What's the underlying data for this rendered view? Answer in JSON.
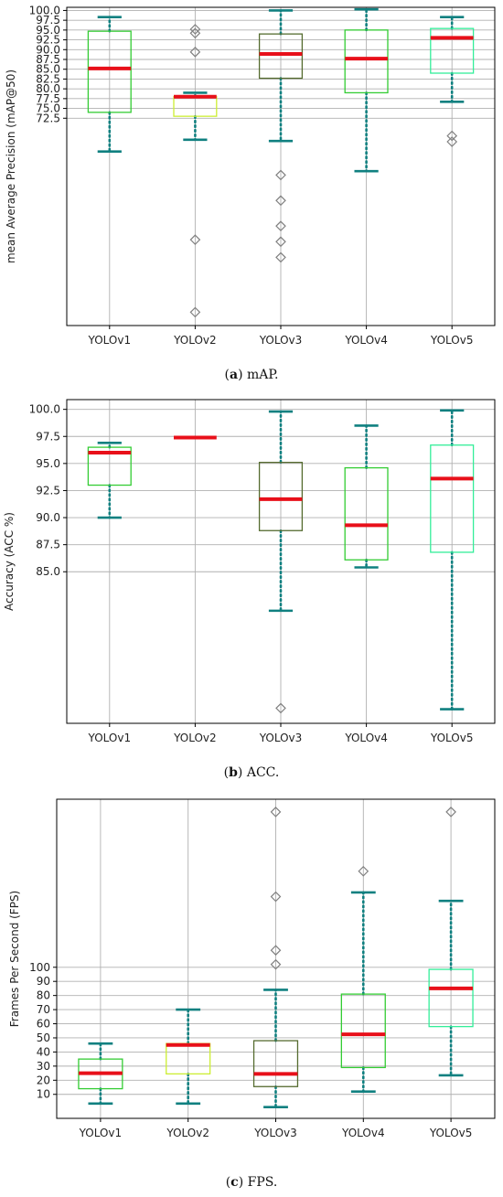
{
  "chart_data": [
    {
      "type": "boxplot",
      "caption_letter": "a",
      "caption_text": " mAP.",
      "ylabel": "mean Average Precision (mAP@50)",
      "yticks": [
        100.0,
        97.5,
        95.0,
        92.5,
        90.0,
        87.5,
        85.0,
        82.5,
        80.0,
        77.5,
        75.0,
        72.5
      ],
      "ylim": [
        19.6,
        100.8
      ],
      "grid": true,
      "categories": [
        "YOLOv1",
        "YOLOv2",
        "YOLOv3",
        "YOLOv4",
        "YOLOv5"
      ],
      "boxes": [
        {
          "name": "YOLOv1",
          "whislo": 64.0,
          "q1": 74.0,
          "med": 85.2,
          "q3": 94.7,
          "whishi": 98.3,
          "fliers": [],
          "color": "#33cc33"
        },
        {
          "name": "YOLOv2",
          "whislo": 67.0,
          "q1": 73.0,
          "med": 78.0,
          "q3": 78.0,
          "whishi": 79.0,
          "fliers": [
            95.2,
            94.2,
            89.4,
            41.5,
            23.0
          ],
          "color": "#ccee33"
        },
        {
          "name": "YOLOv3",
          "whislo": 66.7,
          "q1": 82.7,
          "med": 88.9,
          "q3": 94.0,
          "whishi": 100.0,
          "fliers": [
            58.0,
            51.5,
            45.0,
            41.0,
            37.0
          ],
          "color": "#556b2f"
        },
        {
          "name": "YOLOv4",
          "whislo": 59.0,
          "q1": 79.0,
          "med": 87.7,
          "q3": 95.0,
          "whishi": 100.3,
          "fliers": [],
          "color": "#33cc33"
        },
        {
          "name": "YOLOv5",
          "whislo": 76.7,
          "q1": 84.0,
          "med": 93.0,
          "q3": 95.4,
          "whishi": 98.3,
          "fliers": [
            68.0,
            66.5
          ],
          "color": "#33ee99"
        }
      ]
    },
    {
      "type": "boxplot",
      "caption_letter": "b",
      "caption_text": " ACC.",
      "ylabel": "Accuracy (ACC %)",
      "yticks": [
        100.0,
        97.5,
        95.0,
        92.5,
        90.0,
        87.5,
        85.0
      ],
      "ylim": [
        71.0,
        100.9
      ],
      "grid": true,
      "categories": [
        "YOLOv1",
        "YOLOv2",
        "YOLOv3",
        "YOLOv4",
        "YOLOv5"
      ],
      "boxes": [
        {
          "name": "YOLOv1",
          "whislo": 90.0,
          "q1": 93.0,
          "med": 96.0,
          "q3": 96.5,
          "whishi": 96.9,
          "fliers": [],
          "color": "#33cc33"
        },
        {
          "name": "YOLOv2",
          "whislo": 97.4,
          "q1": 97.4,
          "med": 97.4,
          "q3": 97.4,
          "whishi": 97.4,
          "fliers": [],
          "color": "#ccee33"
        },
        {
          "name": "YOLOv3",
          "whislo": 81.4,
          "q1": 88.8,
          "med": 91.7,
          "q3": 95.1,
          "whishi": 99.8,
          "fliers": [
            72.4
          ],
          "color": "#556b2f"
        },
        {
          "name": "YOLOv4",
          "whislo": 85.4,
          "q1": 86.1,
          "med": 89.3,
          "q3": 94.6,
          "whishi": 98.5,
          "fliers": [],
          "color": "#33cc33"
        },
        {
          "name": "YOLOv5",
          "whislo": 72.3,
          "q1": 86.8,
          "med": 93.6,
          "q3": 96.7,
          "whishi": 99.9,
          "fliers": [],
          "color": "#33ee99"
        }
      ]
    },
    {
      "type": "boxplot",
      "caption_letter": "c",
      "caption_text": " FPS.",
      "ylabel": "Frames Per Second (FPS)",
      "yticks": [
        100,
        90,
        80,
        70,
        60,
        50,
        40,
        30,
        20,
        10
      ],
      "ylim": [
        -7,
        219
      ],
      "grid": true,
      "categories": [
        "YOLOv1",
        "YOLOv2",
        "YOLOv3",
        "YOLOv4",
        "YOLOv5"
      ],
      "boxes": [
        {
          "name": "YOLOv1",
          "whislo": 3.5,
          "q1": 14.0,
          "med": 25.0,
          "q3": 35.0,
          "whishi": 46.0,
          "fliers": [],
          "color": "#33cc33"
        },
        {
          "name": "YOLOv2",
          "whislo": 3.5,
          "q1": 24.5,
          "med": 45.0,
          "q3": 46.0,
          "whishi": 70.0,
          "fliers": [],
          "color": "#ccee33"
        },
        {
          "name": "YOLOv3",
          "whislo": 1.0,
          "q1": 15.5,
          "med": 24.5,
          "q3": 48.0,
          "whishi": 84.0,
          "fliers": [
            210,
            150,
            112,
            102
          ],
          "color": "#556b2f"
        },
        {
          "name": "YOLOv4",
          "whislo": 12.0,
          "q1": 29.0,
          "med": 52.5,
          "q3": 81.0,
          "whishi": 153.0,
          "fliers": [
            168
          ],
          "color": "#33cc33"
        },
        {
          "name": "YOLOv5",
          "whislo": 23.5,
          "q1": 58.0,
          "med": 85.0,
          "q3": 98.5,
          "whishi": 147.0,
          "fliers": [
            210
          ],
          "color": "#33ee99"
        }
      ]
    }
  ]
}
